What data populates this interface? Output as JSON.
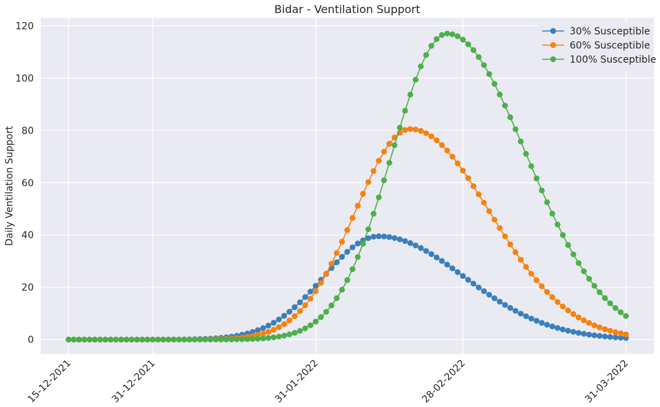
{
  "chart_data": {
    "type": "line",
    "title": "Bidar - Ventilation Support",
    "xlabel": "",
    "ylabel": "Daily Ventilation Support",
    "x_start": "2021-12-15",
    "x_end": "2022-03-31",
    "x_ticks": [
      "15-12-2021",
      "31-12-2021",
      "31-01-2022",
      "28-02-2022",
      "31-03-2022"
    ],
    "y_ticks": [
      0,
      20,
      40,
      60,
      80,
      100,
      120
    ],
    "ylim": [
      -5.5,
      123
    ],
    "grid": true,
    "legend_position": "top-right",
    "series": [
      {
        "name": "30% Susceptible",
        "color": "#3a7fbb",
        "marker": "circle",
        "peak_date": "2022-02-12",
        "peak_value": 39.5,
        "end_value": 0.6
      },
      {
        "name": "60% Susceptible",
        "color": "#f5820f",
        "marker": "circle",
        "peak_date": "2022-02-18",
        "peak_value": 80.5,
        "end_value": 2.0
      },
      {
        "name": "100% Susceptible",
        "color": "#4daf4a",
        "marker": "circle",
        "peak_date": "2022-02-25",
        "peak_value": 117.0,
        "end_value": 9.0
      }
    ]
  }
}
